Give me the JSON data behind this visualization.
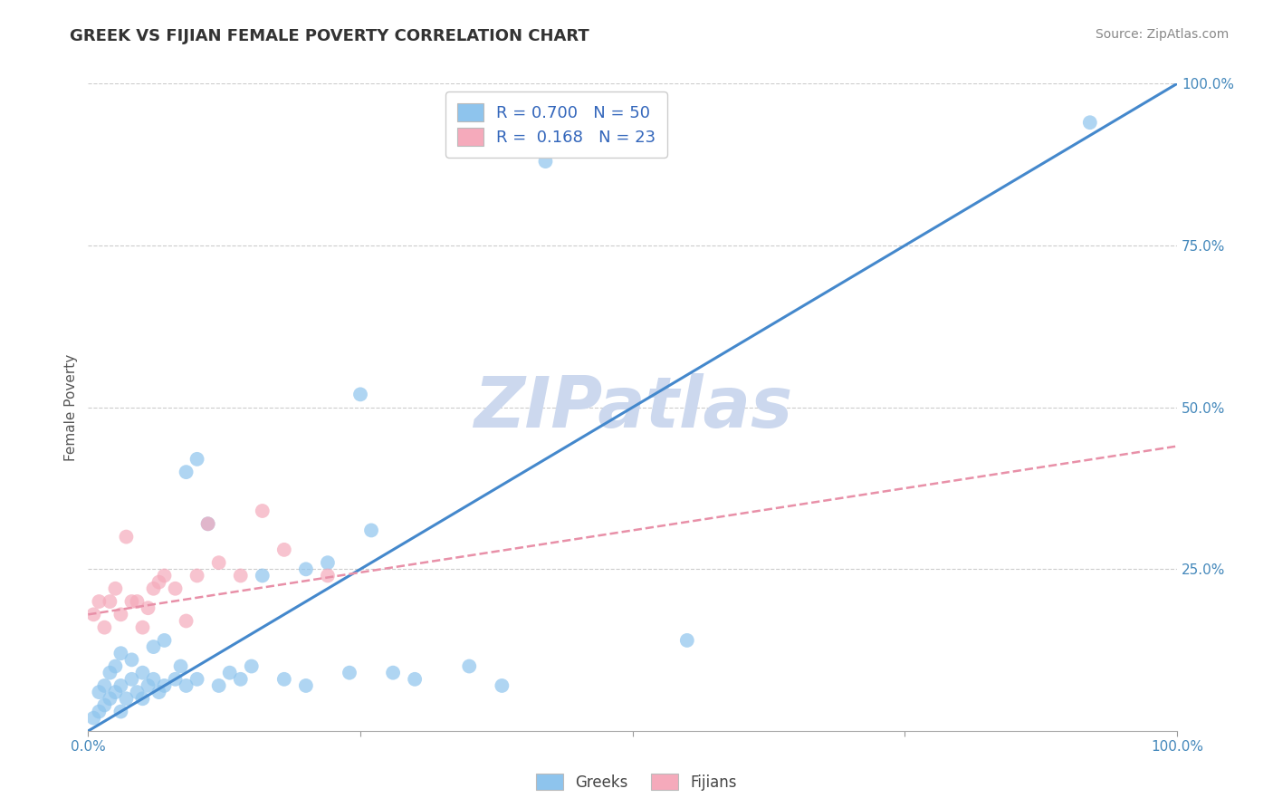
{
  "title": "GREEK VS FIJIAN FEMALE POVERTY CORRELATION CHART",
  "source": "Source: ZipAtlas.com",
  "ylabel": "Female Poverty",
  "xlim": [
    0.0,
    1.0
  ],
  "ylim": [
    0.0,
    1.0
  ],
  "xticks": [
    0.0,
    0.25,
    0.5,
    0.75,
    1.0
  ],
  "xtick_labels": [
    "0.0%",
    "",
    "",
    "",
    "100.0%"
  ],
  "yticks": [
    0.25,
    0.5,
    0.75,
    1.0
  ],
  "ytick_labels": [
    "25.0%",
    "50.0%",
    "75.0%",
    "100.0%"
  ],
  "greek_color": "#8ec4ed",
  "fijian_color": "#f5aabb",
  "greek_line_color": "#4488cc",
  "fijian_line_color": "#e890a8",
  "greek_R": 0.7,
  "greek_N": 50,
  "fijian_R": 0.168,
  "fijian_N": 23,
  "watermark": "ZIPatlas",
  "watermark_color": "#ccd8ee",
  "background_color": "#ffffff",
  "grid_color": "#cccccc",
  "legend_text_color": "#3366bb",
  "greek_scatter_x": [
    0.005,
    0.01,
    0.01,
    0.015,
    0.015,
    0.02,
    0.02,
    0.025,
    0.025,
    0.03,
    0.03,
    0.03,
    0.035,
    0.04,
    0.04,
    0.045,
    0.05,
    0.05,
    0.055,
    0.06,
    0.06,
    0.065,
    0.07,
    0.07,
    0.08,
    0.085,
    0.09,
    0.09,
    0.1,
    0.1,
    0.11,
    0.12,
    0.13,
    0.14,
    0.15,
    0.16,
    0.18,
    0.2,
    0.22,
    0.24,
    0.26,
    0.28,
    0.3,
    0.35,
    0.38,
    0.42,
    0.55,
    0.92,
    0.25,
    0.2
  ],
  "greek_scatter_y": [
    0.02,
    0.03,
    0.06,
    0.04,
    0.07,
    0.05,
    0.09,
    0.06,
    0.1,
    0.03,
    0.07,
    0.12,
    0.05,
    0.08,
    0.11,
    0.06,
    0.05,
    0.09,
    0.07,
    0.08,
    0.13,
    0.06,
    0.07,
    0.14,
    0.08,
    0.1,
    0.07,
    0.4,
    0.08,
    0.42,
    0.32,
    0.07,
    0.09,
    0.08,
    0.1,
    0.24,
    0.08,
    0.25,
    0.26,
    0.09,
    0.31,
    0.09,
    0.08,
    0.1,
    0.07,
    0.88,
    0.14,
    0.94,
    0.52,
    0.07
  ],
  "fijian_scatter_x": [
    0.005,
    0.01,
    0.015,
    0.02,
    0.025,
    0.03,
    0.035,
    0.04,
    0.045,
    0.05,
    0.055,
    0.06,
    0.065,
    0.07,
    0.08,
    0.09,
    0.1,
    0.11,
    0.12,
    0.14,
    0.16,
    0.18,
    0.22
  ],
  "fijian_scatter_y": [
    0.18,
    0.2,
    0.16,
    0.2,
    0.22,
    0.18,
    0.3,
    0.2,
    0.2,
    0.16,
    0.19,
    0.22,
    0.23,
    0.24,
    0.22,
    0.17,
    0.24,
    0.32,
    0.26,
    0.24,
    0.34,
    0.28,
    0.24
  ],
  "greek_line_x0": 0.0,
  "greek_line_y0": 0.0,
  "greek_line_x1": 1.0,
  "greek_line_y1": 1.0,
  "fijian_line_x0": 0.0,
  "fijian_line_y0": 0.18,
  "fijian_line_x1": 1.0,
  "fijian_line_y1": 0.44
}
